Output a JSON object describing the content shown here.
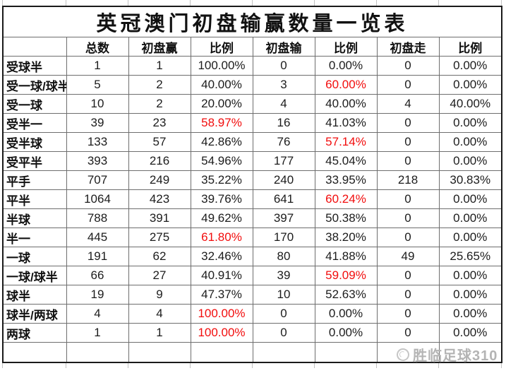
{
  "chart_data": {
    "type": "table",
    "title": "英冠澳门初盘输赢数量一览表",
    "columns": [
      "",
      "总数",
      "初盘赢",
      "比例",
      "初盘输",
      "比例",
      "初盘走",
      "比例"
    ],
    "rows": [
      {
        "label": "受球半",
        "values": [
          "1",
          "1",
          "100.00%",
          "0",
          "0.00%",
          "0",
          "0.00%"
        ],
        "red_indices": []
      },
      {
        "label": "受一球/球半",
        "values": [
          "5",
          "2",
          "40.00%",
          "3",
          "60.00%",
          "0",
          "0.00%"
        ],
        "red_indices": [
          4
        ]
      },
      {
        "label": "受一球",
        "values": [
          "10",
          "2",
          "20.00%",
          "4",
          "40.00%",
          "4",
          "40.00%"
        ],
        "red_indices": []
      },
      {
        "label": "受半一",
        "values": [
          "39",
          "23",
          "58.97%",
          "16",
          "41.03%",
          "0",
          "0.00%"
        ],
        "red_indices": [
          2
        ]
      },
      {
        "label": "受半球",
        "values": [
          "133",
          "57",
          "42.86%",
          "76",
          "57.14%",
          "0",
          "0.00%"
        ],
        "red_indices": [
          4
        ]
      },
      {
        "label": "受平半",
        "values": [
          "393",
          "216",
          "54.96%",
          "177",
          "45.04%",
          "0",
          "0.00%"
        ],
        "red_indices": []
      },
      {
        "label": "平手",
        "values": [
          "707",
          "249",
          "35.22%",
          "240",
          "33.95%",
          "218",
          "30.83%"
        ],
        "red_indices": []
      },
      {
        "label": "平半",
        "values": [
          "1064",
          "423",
          "39.76%",
          "641",
          "60.24%",
          "0",
          "0.00%"
        ],
        "red_indices": [
          4
        ]
      },
      {
        "label": "半球",
        "values": [
          "788",
          "391",
          "49.62%",
          "397",
          "50.38%",
          "0",
          "0.00%"
        ],
        "red_indices": []
      },
      {
        "label": "半一",
        "values": [
          "445",
          "275",
          "61.80%",
          "170",
          "38.20%",
          "0",
          "0.00%"
        ],
        "red_indices": [
          2
        ]
      },
      {
        "label": "一球",
        "values": [
          "191",
          "62",
          "32.46%",
          "80",
          "41.88%",
          "49",
          "25.65%"
        ],
        "red_indices": []
      },
      {
        "label": "一球/球半",
        "values": [
          "66",
          "27",
          "40.91%",
          "39",
          "59.09%",
          "0",
          "0.00%"
        ],
        "red_indices": [
          4
        ]
      },
      {
        "label": "球半",
        "values": [
          "19",
          "9",
          "47.37%",
          "10",
          "52.63%",
          "0",
          "0.00%"
        ],
        "red_indices": []
      },
      {
        "label": "球半/两球",
        "values": [
          "4",
          "4",
          "100.00%",
          "0",
          "0.00%",
          "0",
          "0.00%"
        ],
        "red_indices": [
          2
        ]
      },
      {
        "label": "两球",
        "values": [
          "1",
          "1",
          "100.00%",
          "0",
          "0.00%",
          "0",
          "0.00%"
        ],
        "red_indices": [
          2
        ]
      },
      {
        "label": "",
        "values": [
          "",
          "",
          "",
          "",
          "",
          "",
          ""
        ],
        "red_indices": []
      }
    ],
    "layout_hints": {
      "grid": "on",
      "highlight_cells_color": "#f20d0d",
      "title_row_merged": true
    }
  },
  "watermark": {
    "text": "胜临足球310",
    "icon": "football-logo-icon"
  },
  "colors": {
    "background": "#ffffff",
    "text": "#1c1c1c",
    "highlight_red": "#f20d0d",
    "grid_line": "#6e6e6e",
    "outer_border": "#1a1a1a",
    "watermark_gray": "#b4b4b4"
  }
}
